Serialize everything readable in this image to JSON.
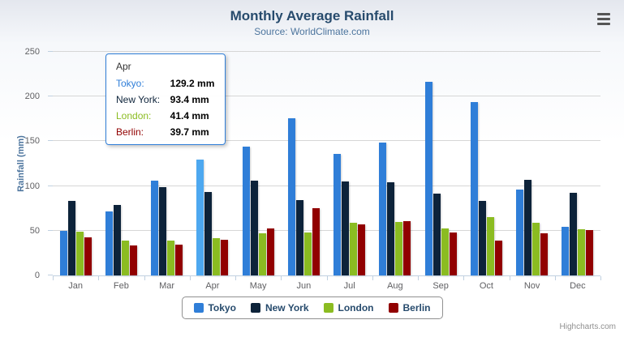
{
  "header": {
    "title": "Monthly Average Rainfall",
    "subtitle": "Source: WorldClimate.com"
  },
  "chart_data": {
    "type": "bar",
    "title": "Monthly Average Rainfall",
    "subtitle": "Source: WorldClimate.com",
    "xlabel": "",
    "ylabel": "Rainfall (mm)",
    "ylim": [
      0,
      250
    ],
    "yticks": [
      0,
      50,
      100,
      150,
      200,
      250
    ],
    "grid": true,
    "legend_position": "bottom",
    "categories": [
      "Jan",
      "Feb",
      "Mar",
      "Apr",
      "May",
      "Jun",
      "Jul",
      "Aug",
      "Sep",
      "Oct",
      "Nov",
      "Dec"
    ],
    "series": [
      {
        "name": "Tokyo",
        "color": "#2f7ed8",
        "values": [
          49.9,
          71.5,
          106.4,
          129.2,
          144.0,
          176.0,
          135.6,
          148.5,
          216.4,
          194.1,
          95.6,
          54.4
        ]
      },
      {
        "name": "New York",
        "color": "#0d233a",
        "values": [
          83.6,
          78.8,
          98.5,
          93.4,
          106.0,
          84.5,
          105.0,
          104.3,
          91.2,
          83.5,
          106.6,
          92.3
        ]
      },
      {
        "name": "London",
        "color": "#8bbc21",
        "values": [
          48.9,
          38.8,
          39.3,
          41.4,
          47.0,
          48.3,
          59.0,
          59.6,
          52.4,
          65.2,
          59.3,
          51.2
        ]
      },
      {
        "name": "Berlin",
        "color": "#910000",
        "values": [
          42.4,
          33.2,
          34.5,
          39.7,
          52.6,
          75.5,
          57.4,
          60.4,
          47.6,
          39.1,
          46.8,
          51.1
        ]
      }
    ],
    "hover": {
      "series": "Tokyo",
      "category": "Apr"
    }
  },
  "tooltip": {
    "category": "Apr",
    "border_color": "#2f7ed8",
    "rows": [
      {
        "label": "Tokyo:",
        "value": "129.2 mm",
        "color": "#2f7ed8"
      },
      {
        "label": "New York:",
        "value": "93.4 mm",
        "color": "#0d233a"
      },
      {
        "label": "London:",
        "value": "41.4 mm",
        "color": "#8bbc21"
      },
      {
        "label": "Berlin:",
        "value": "39.7 mm",
        "color": "#910000"
      }
    ]
  },
  "credits": "Highcharts.com",
  "context_menu": {
    "icon": "hamburger-icon"
  }
}
